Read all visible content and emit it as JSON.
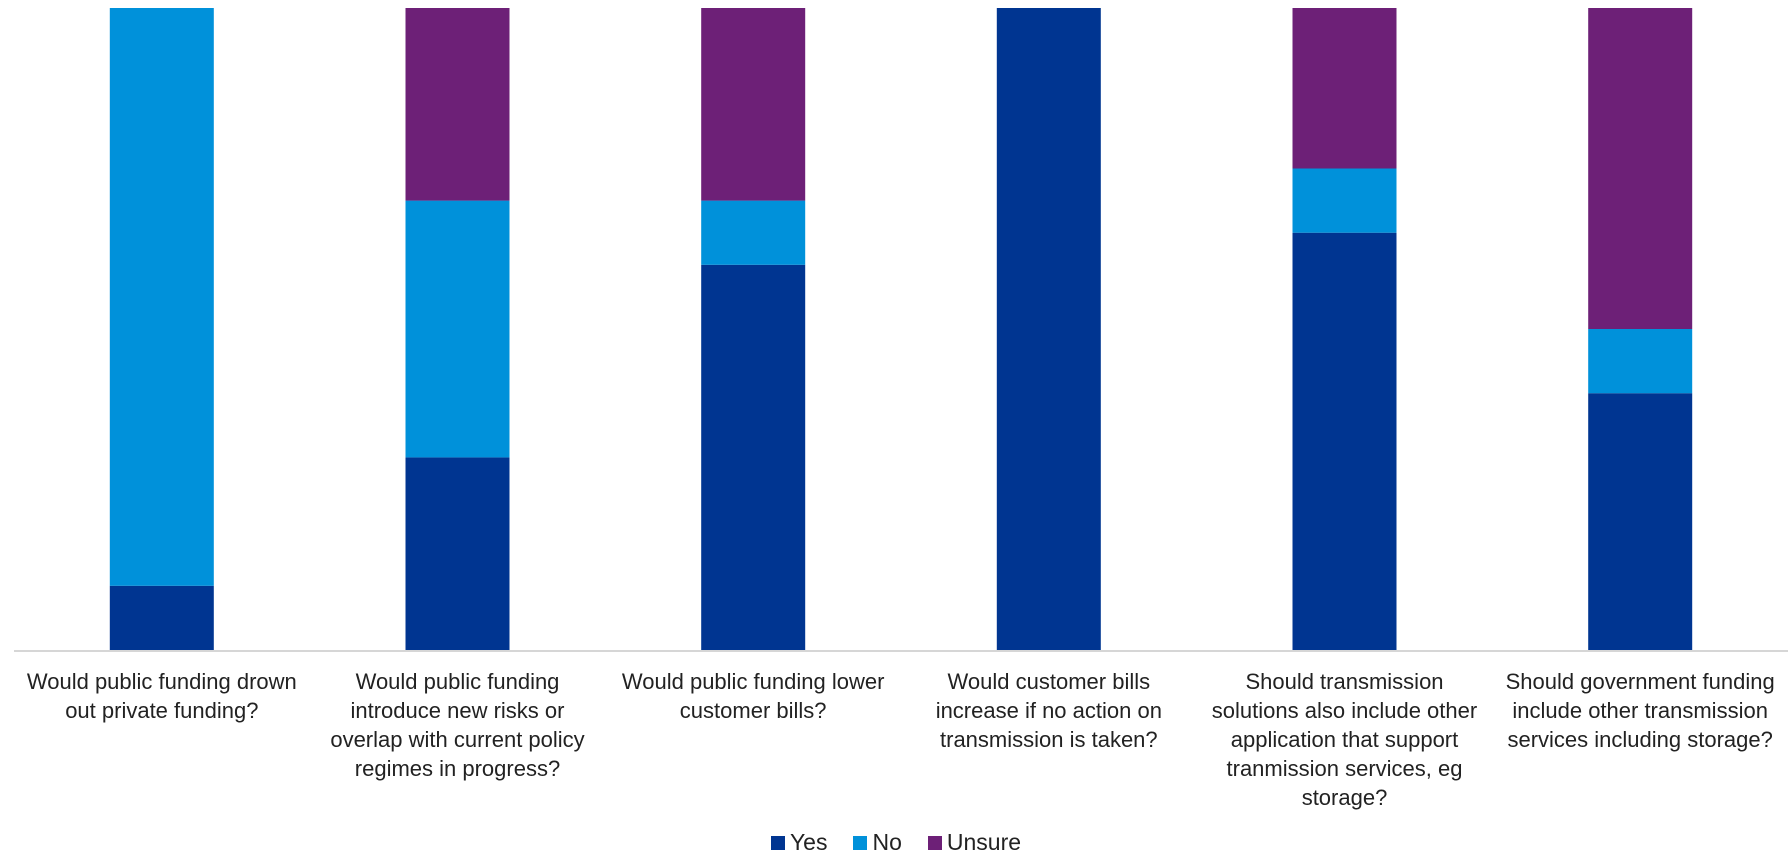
{
  "chart_data": {
    "type": "bar",
    "stacked": true,
    "normalized_100_percent": true,
    "categories": [
      "Would public funding drown out private funding?",
      "Would public funding introduce new risks or overlap with current policy regimes in progress?",
      "Would public funding lower customer bills?",
      "Would customer bills increase if no action on transmission is taken?",
      "Should transmission solutions also include other application that support tranmission services, eg storage?",
      "Should government funding include other transmission services including storage?"
    ],
    "series": [
      {
        "name": "Yes",
        "color": "#003591",
        "values": [
          10,
          30,
          60,
          100,
          65,
          40
        ]
      },
      {
        "name": "No",
        "color": "#0091DA",
        "values": [
          90,
          40,
          10,
          0,
          10,
          10
        ]
      },
      {
        "name": "Unsure",
        "color": "#6D2077",
        "values": [
          0,
          30,
          30,
          0,
          25,
          50
        ]
      }
    ],
    "ylim": [
      0,
      100
    ],
    "y_axis_visible": false,
    "grid": false,
    "legend_position": "bottom-center",
    "title": "",
    "xlabel": "",
    "ylabel": ""
  }
}
